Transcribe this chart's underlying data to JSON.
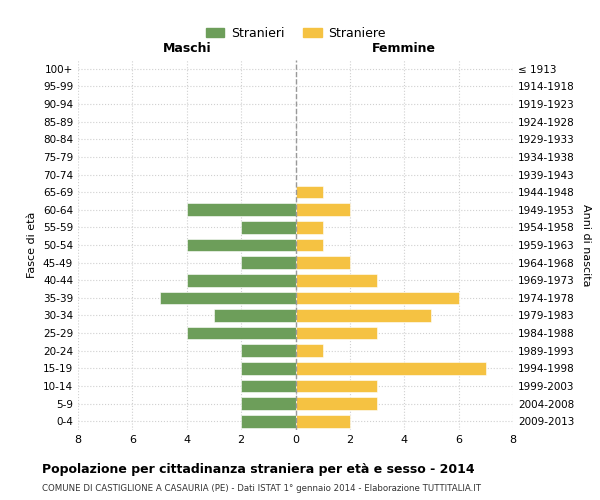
{
  "age_groups": [
    "100+",
    "95-99",
    "90-94",
    "85-89",
    "80-84",
    "75-79",
    "70-74",
    "65-69",
    "60-64",
    "55-59",
    "50-54",
    "45-49",
    "40-44",
    "35-39",
    "30-34",
    "25-29",
    "20-24",
    "15-19",
    "10-14",
    "5-9",
    "0-4"
  ],
  "birth_years": [
    "≤ 1913",
    "1914-1918",
    "1919-1923",
    "1924-1928",
    "1929-1933",
    "1934-1938",
    "1939-1943",
    "1944-1948",
    "1949-1953",
    "1954-1958",
    "1959-1963",
    "1964-1968",
    "1969-1973",
    "1974-1978",
    "1979-1983",
    "1984-1988",
    "1989-1993",
    "1994-1998",
    "1999-2003",
    "2004-2008",
    "2009-2013"
  ],
  "males": [
    0,
    0,
    0,
    0,
    0,
    0,
    0,
    0,
    4,
    2,
    4,
    2,
    4,
    5,
    3,
    4,
    2,
    2,
    2,
    2,
    2
  ],
  "females": [
    0,
    0,
    0,
    0,
    0,
    0,
    0,
    1,
    2,
    1,
    1,
    2,
    3,
    6,
    5,
    3,
    1,
    7,
    3,
    3,
    2
  ],
  "male_color": "#6d9e5a",
  "female_color": "#f5c242",
  "male_label": "Stranieri",
  "female_label": "Straniere",
  "title": "Popolazione per cittadinanza straniera per età e sesso - 2014",
  "subtitle": "COMUNE DI CASTIGLIONE A CASAURIA (PE) - Dati ISTAT 1° gennaio 2014 - Elaborazione TUTTITALIA.IT",
  "xlabel_left": "Maschi",
  "xlabel_right": "Femmine",
  "ylabel_left": "Fasce di età",
  "ylabel_right": "Anni di nascita",
  "xlim": 8,
  "background_color": "#ffffff",
  "grid_color": "#d0d0d0"
}
